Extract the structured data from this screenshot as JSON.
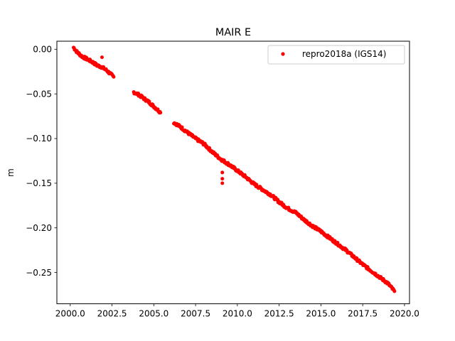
{
  "chart_data": {
    "type": "scatter",
    "title": "MAIR E",
    "xlabel": "",
    "ylabel": "m",
    "xlim": [
      1999.2,
      2020.3
    ],
    "ylim": [
      -0.285,
      0.009
    ],
    "x_ticks": [
      2000.0,
      2002.5,
      2005.0,
      2007.5,
      2010.0,
      2012.5,
      2015.0,
      2017.5,
      2020.0
    ],
    "x_tick_labels": [
      "2000.0",
      "2002.5",
      "2005.0",
      "2007.5",
      "2010.0",
      "2012.5",
      "2015.0",
      "2017.5",
      "2020.0"
    ],
    "y_ticks": [
      0.0,
      -0.05,
      -0.1,
      -0.15,
      -0.2,
      -0.25
    ],
    "y_tick_labels": [
      "0.00",
      "−0.05",
      "−0.10",
      "−0.15",
      "−0.20",
      "−0.25"
    ],
    "grid": false,
    "legend_position": "top-right",
    "marker": "circle",
    "series": [
      {
        "name": "repro2018a (IGS14)",
        "color": "#ff0000",
        "segments": [
          {
            "x": [
              2000.2,
              2000.4,
              2000.7,
              2001.0,
              2001.3,
              2001.6,
              2001.9,
              2002.2,
              2002.6
            ],
            "y": [
              0.002,
              -0.003,
              -0.008,
              -0.011,
              -0.014,
              -0.018,
              -0.02,
              -0.024,
              -0.031
            ]
          },
          {
            "x": [
              2003.8,
              2004.1,
              2004.4,
              2004.7,
              2005.0,
              2005.3,
              2005.4
            ],
            "y": [
              -0.048,
              -0.051,
              -0.055,
              -0.059,
              -0.064,
              -0.069,
              -0.071
            ]
          },
          {
            "x": [
              2006.2,
              2006.6,
              2007.0,
              2007.5,
              2008.0,
              2008.5,
              2009.0,
              2009.5,
              2010.0,
              2010.5,
              2011.0,
              2011.5,
              2012.0,
              2012.5,
              2013.0,
              2013.5,
              2014.0,
              2014.5,
              2015.0,
              2015.5,
              2016.0,
              2016.5,
              2017.0,
              2017.5,
              2018.0,
              2018.5,
              2019.0,
              2019.4
            ],
            "y": [
              -0.082,
              -0.087,
              -0.093,
              -0.1,
              -0.106,
              -0.115,
              -0.123,
              -0.129,
              -0.136,
              -0.143,
              -0.151,
              -0.157,
              -0.163,
              -0.171,
              -0.178,
              -0.183,
              -0.191,
              -0.198,
              -0.204,
              -0.211,
              -0.218,
              -0.225,
              -0.233,
              -0.241,
              -0.248,
              -0.255,
              -0.262,
              -0.271
            ]
          }
        ],
        "outliers": {
          "x": [
            2001.9,
            2009.1,
            2009.1,
            2009.1
          ],
          "y": [
            -0.009,
            -0.138,
            -0.145,
            -0.15
          ]
        }
      }
    ]
  }
}
